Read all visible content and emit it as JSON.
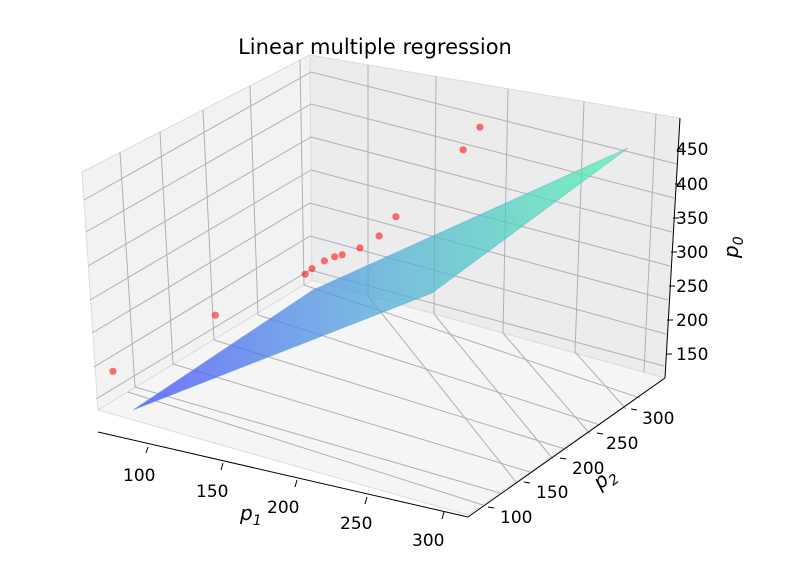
{
  "chart_data": {
    "type": "scatter",
    "title": "Linear multiple regression",
    "xlabel": "p",
    "xlabel_sub": "1",
    "ylabel": "p",
    "ylabel_sub": "2",
    "zlabel": "p",
    "zlabel_sub": "0",
    "x_ticks": [
      "100",
      "150",
      "200",
      "250",
      "300"
    ],
    "y_ticks": [
      "100",
      "150",
      "200",
      "250",
      "300"
    ],
    "z_ticks": [
      "150",
      "200",
      "250",
      "300",
      "350",
      "400",
      "450"
    ],
    "xlim": [
      75,
      310
    ],
    "ylim": [
      75,
      325
    ],
    "zlim": [
      115,
      475
    ],
    "grid": true,
    "surface": {
      "colormap": "winter-like (blue to green)",
      "corners": {
        "low": 140,
        "high": 455
      }
    },
    "points": {
      "color": "#ff0000",
      "values": [
        {
          "p1": 80,
          "p2": 88,
          "p0": 165
        },
        {
          "p1": 140,
          "p2": 150,
          "p0": 225
        },
        {
          "p1": 195,
          "p2": 202,
          "p0": 268
        },
        {
          "p1": 200,
          "p2": 205,
          "p0": 276
        },
        {
          "p1": 205,
          "p2": 215,
          "p0": 282
        },
        {
          "p1": 212,
          "p2": 220,
          "p0": 287
        },
        {
          "p1": 218,
          "p2": 223,
          "p0": 290
        },
        {
          "p1": 230,
          "p2": 232,
          "p0": 298
        },
        {
          "p1": 240,
          "p2": 245,
          "p0": 310
        },
        {
          "p1": 250,
          "p2": 255,
          "p0": 335
        },
        {
          "p1": 290,
          "p2": 295,
          "p0": 420
        },
        {
          "p1": 300,
          "p2": 305,
          "p0": 450
        }
      ]
    }
  }
}
